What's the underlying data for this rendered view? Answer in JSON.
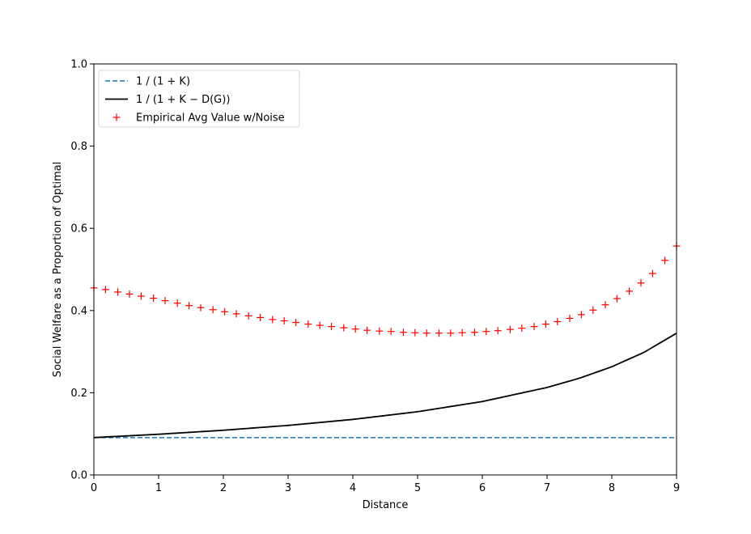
{
  "chart_data": {
    "type": "line",
    "xlabel": "Distance",
    "ylabel": "Social Welfare as a Proportion of Optimal",
    "xlim": [
      0,
      9
    ],
    "ylim": [
      0.0,
      1.0
    ],
    "xticks": [
      "0",
      "1",
      "2",
      "3",
      "4",
      "5",
      "6",
      "7",
      "8",
      "9"
    ],
    "yticks": [
      "0.0",
      "0.2",
      "0.4",
      "0.6",
      "0.8",
      "1.0"
    ],
    "grid": false,
    "legend_position": "top-left",
    "series": [
      {
        "name": "1 / (1 + K)",
        "style": "dashed",
        "color": "#1f77b4",
        "x": [
          0,
          9
        ],
        "y": [
          0.0909,
          0.0909
        ]
      },
      {
        "name": "1 / (1 + K − D(G))",
        "style": "solid",
        "color": "#000000",
        "x": [
          0,
          1,
          2,
          3,
          4,
          5,
          6,
          7,
          7.5,
          8,
          8.5,
          9
        ],
        "y": [
          0.0909,
          0.099,
          0.1087,
          0.1205,
          0.1351,
          0.1538,
          0.1786,
          0.2128,
          0.2353,
          0.2632,
          0.2985,
          0.3448
        ]
      },
      {
        "name": "Empirical Avg Value w/Noise",
        "style": "markers",
        "marker": "+",
        "color": "#ff0000",
        "x": [
          0,
          0.18,
          0.37,
          0.55,
          0.73,
          0.92,
          1.1,
          1.29,
          1.47,
          1.65,
          1.84,
          2.02,
          2.2,
          2.39,
          2.57,
          2.76,
          2.94,
          3.12,
          3.31,
          3.49,
          3.67,
          3.86,
          4.04,
          4.22,
          4.41,
          4.59,
          4.78,
          4.96,
          5.14,
          5.33,
          5.51,
          5.69,
          5.88,
          6.06,
          6.24,
          6.43,
          6.61,
          6.8,
          6.98,
          7.16,
          7.35,
          7.53,
          7.71,
          7.9,
          8.08,
          8.27,
          8.45,
          8.63,
          8.82,
          9.0
        ],
        "y": [
          0.455,
          0.451,
          0.445,
          0.44,
          0.435,
          0.43,
          0.424,
          0.418,
          0.412,
          0.407,
          0.402,
          0.397,
          0.392,
          0.387,
          0.383,
          0.378,
          0.375,
          0.371,
          0.367,
          0.364,
          0.361,
          0.358,
          0.355,
          0.352,
          0.35,
          0.349,
          0.347,
          0.346,
          0.345,
          0.345,
          0.345,
          0.346,
          0.347,
          0.349,
          0.351,
          0.354,
          0.357,
          0.361,
          0.367,
          0.373,
          0.381,
          0.39,
          0.401,
          0.414,
          0.429,
          0.447,
          0.467,
          0.49,
          0.522,
          0.557
        ]
      }
    ]
  }
}
